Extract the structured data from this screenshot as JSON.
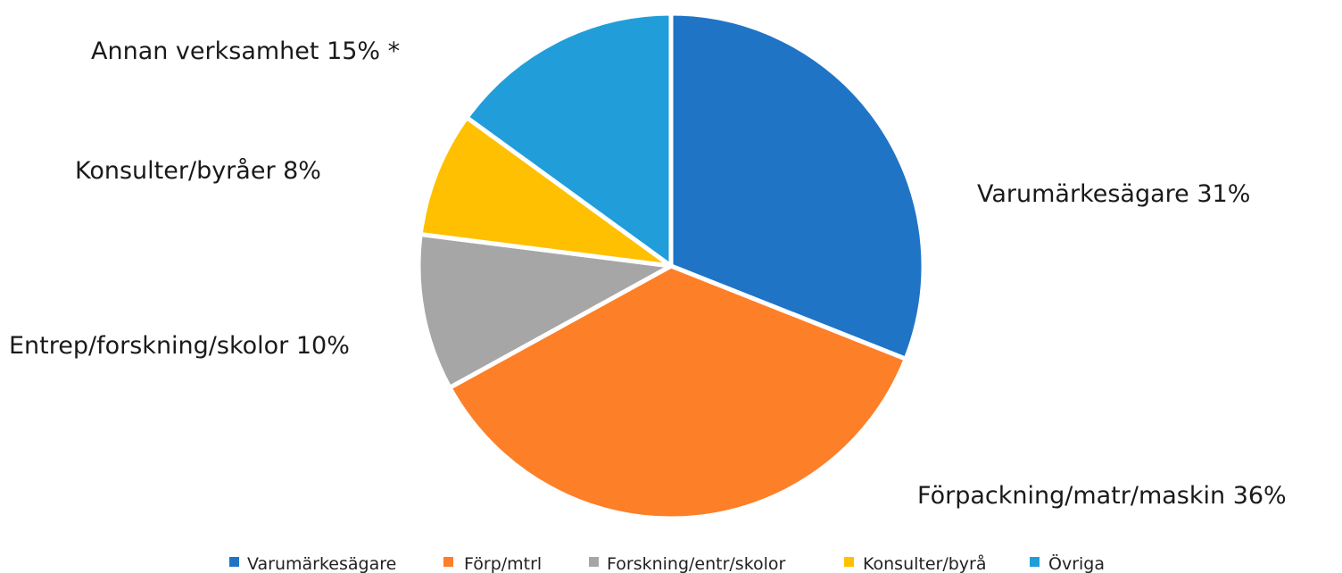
{
  "chart_data": {
    "type": "pie",
    "title": "",
    "slices": [
      {
        "legend": "Varumärkesägare",
        "label": "Varumärkesägare 31%",
        "value": 31,
        "color": "#1f74c6"
      },
      {
        "legend": "Förp/mtrl",
        "label": "Förpackning/matr/maskin 36%",
        "value": 36,
        "color": "#fd7f27"
      },
      {
        "legend": "Forskning/entr/skolor",
        "label": "Entrep/forskning/skolor 10%",
        "value": 10,
        "color": "#a6a6a6"
      },
      {
        "legend": "Konsulter/byrå",
        "label": "Konsulter/byråer 8%",
        "value": 8,
        "color": "#fec000"
      },
      {
        "legend": "Övriga",
        "label": "Annan verksamhet 15% *",
        "value": 15,
        "color": "#219ed9"
      }
    ],
    "legend_position": "bottom",
    "start_angle": "12 o'clock",
    "direction": "clockwise"
  }
}
